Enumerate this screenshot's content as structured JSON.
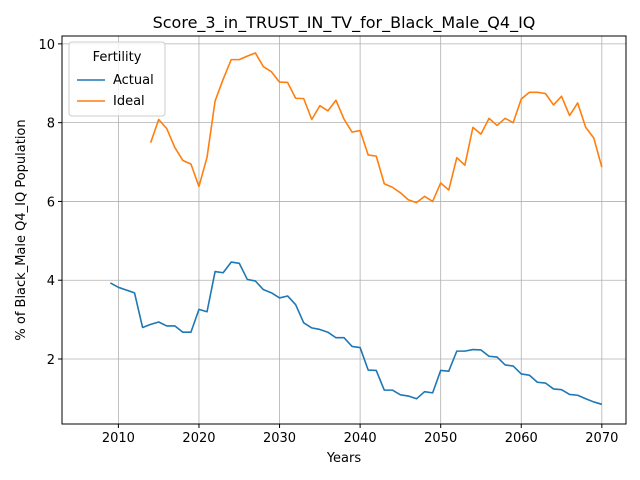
{
  "chart_data": {
    "type": "line",
    "title": "Score_3_in_TRUST_IN_TV_for_Black_Male_Q4_IQ",
    "xlabel": "Years",
    "ylabel": "% of Black_Male Q4_IQ Population",
    "xlim": [
      2003,
      2073
    ],
    "ylim": [
      0.35,
      10.2
    ],
    "xticks": [
      2010,
      2020,
      2030,
      2040,
      2050,
      2060,
      2070
    ],
    "yticks": [
      2,
      4,
      6,
      8,
      10
    ],
    "grid": true,
    "legend": {
      "title": "Fertility",
      "placement": "top-left"
    },
    "series": [
      {
        "name": "Actual",
        "color": "#1f77b4",
        "x": [
          2009,
          2010,
          2011,
          2012,
          2013,
          2014,
          2015,
          2016,
          2017,
          2018,
          2019,
          2020,
          2021,
          2022,
          2023,
          2024,
          2025,
          2026,
          2027,
          2028,
          2029,
          2030,
          2031,
          2032,
          2033,
          2034,
          2035,
          2036,
          2037,
          2038,
          2039,
          2040,
          2041,
          2042,
          2043,
          2044,
          2045,
          2046,
          2047,
          2048,
          2049,
          2050,
          2051,
          2052,
          2053,
          2054,
          2055,
          2056,
          2057,
          2058,
          2059,
          2060,
          2061,
          2062,
          2063,
          2064,
          2065,
          2066,
          2067,
          2068,
          2069,
          2070
        ],
        "values": [
          3.93,
          3.82,
          3.75,
          3.68,
          2.8,
          2.88,
          2.94,
          2.84,
          2.84,
          2.68,
          2.68,
          3.26,
          3.2,
          4.22,
          4.19,
          4.46,
          4.43,
          4.02,
          3.98,
          3.76,
          3.68,
          3.55,
          3.6,
          3.38,
          2.92,
          2.79,
          2.75,
          2.68,
          2.54,
          2.54,
          2.32,
          2.29,
          1.72,
          1.71,
          1.21,
          1.21,
          1.09,
          1.06,
          0.99,
          1.17,
          1.14,
          1.71,
          1.69,
          2.2,
          2.2,
          2.24,
          2.23,
          2.07,
          2.05,
          1.85,
          1.82,
          1.62,
          1.59,
          1.41,
          1.39,
          1.24,
          1.22,
          1.1,
          1.08,
          0.99,
          0.91,
          0.85
        ]
      },
      {
        "name": "Ideal",
        "color": "#ff7f0e",
        "x": [
          2014,
          2015,
          2016,
          2017,
          2018,
          2019,
          2020,
          2021,
          2022,
          2023,
          2024,
          2025,
          2026,
          2027,
          2028,
          2029,
          2030,
          2031,
          2032,
          2033,
          2034,
          2035,
          2036,
          2037,
          2038,
          2039,
          2040,
          2041,
          2042,
          2043,
          2044,
          2045,
          2046,
          2047,
          2048,
          2049,
          2050,
          2051,
          2052,
          2053,
          2054,
          2055,
          2056,
          2057,
          2058,
          2059,
          2060,
          2061,
          2062,
          2063,
          2064,
          2065,
          2066,
          2067,
          2068,
          2069,
          2070
        ],
        "values": [
          7.49,
          8.08,
          7.85,
          7.37,
          7.04,
          6.95,
          6.38,
          7.12,
          8.55,
          9.1,
          9.6,
          9.6,
          9.69,
          9.77,
          9.42,
          9.29,
          9.03,
          9.02,
          8.62,
          8.61,
          8.08,
          8.43,
          8.3,
          8.57,
          8.09,
          7.76,
          7.8,
          7.18,
          7.15,
          6.45,
          6.36,
          6.22,
          6.04,
          5.97,
          6.13,
          6.0,
          6.47,
          6.29,
          7.11,
          6.92,
          7.88,
          7.71,
          8.11,
          7.93,
          8.11,
          8.0,
          8.6,
          8.77,
          8.77,
          8.74,
          8.45,
          8.67,
          8.18,
          8.5,
          7.88,
          7.61,
          6.87
        ]
      }
    ]
  }
}
